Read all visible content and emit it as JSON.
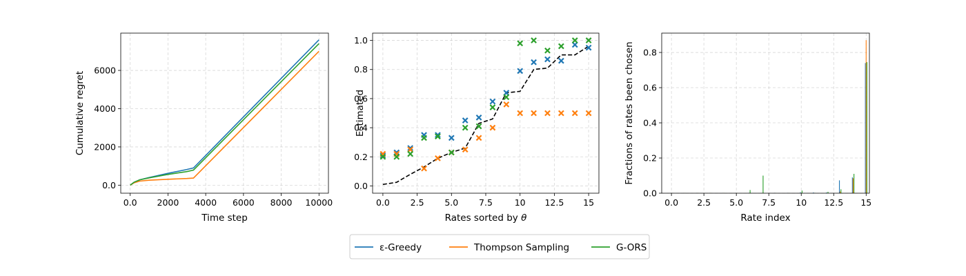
{
  "legend": {
    "items": [
      {
        "label": "ε-Greedy",
        "color": "#1f77b4"
      },
      {
        "label": "Thompson Sampling",
        "color": "#ff7f0e"
      },
      {
        "label": "G-ORS",
        "color": "#2ca02c"
      }
    ]
  },
  "chart_data": [
    {
      "type": "line",
      "xlabel": "Time step",
      "ylabel": "Cumulative regret",
      "xlim": [
        -500,
        10500
      ],
      "ylim": [
        -420,
        7950
      ],
      "xticks": [
        0,
        2000,
        4000,
        6000,
        8000,
        10000
      ],
      "yticks": [
        0,
        2000,
        4000,
        6000
      ],
      "grid": true,
      "series": [
        {
          "name": "ε-Greedy",
          "color": "#1f77b4",
          "x": [
            0,
            200,
            500,
            1000,
            2000,
            3000,
            3350,
            10000
          ],
          "y": [
            0,
            150,
            280,
            400,
            620,
            820,
            900,
            7600
          ]
        },
        {
          "name": "Thompson Sampling",
          "color": "#ff7f0e",
          "x": [
            0,
            200,
            500,
            1000,
            2000,
            3000,
            3350,
            10000
          ],
          "y": [
            0,
            120,
            210,
            260,
            310,
            350,
            370,
            7000
          ]
        },
        {
          "name": "G-ORS",
          "color": "#2ca02c",
          "x": [
            0,
            200,
            500,
            1000,
            2000,
            3000,
            3350,
            10000
          ],
          "y": [
            0,
            150,
            280,
            380,
            560,
            710,
            790,
            7400
          ]
        }
      ]
    },
    {
      "type": "scatter",
      "xlabel_prefix": "Rates sorted by ",
      "xlabel_symbol": "θ",
      "ylabel": "Estimated",
      "xlim": [
        -0.75,
        15.75
      ],
      "ylim": [
        -0.05,
        1.05
      ],
      "xticks": [
        0.0,
        2.5,
        5.0,
        7.5,
        10.0,
        12.5,
        15.0
      ],
      "yticks": [
        0.0,
        0.2,
        0.4,
        0.6,
        0.8,
        1.0
      ],
      "grid": true,
      "reference_line": {
        "style": "dashed",
        "color": "#000000",
        "x": [
          0,
          1,
          2,
          3,
          4,
          5,
          6,
          7,
          8,
          9,
          10,
          11,
          12,
          13,
          14,
          15
        ],
        "y": [
          0.01,
          0.025,
          0.08,
          0.13,
          0.19,
          0.23,
          0.26,
          0.43,
          0.46,
          0.64,
          0.65,
          0.8,
          0.81,
          0.9,
          0.9,
          0.96
        ]
      },
      "series": [
        {
          "name": "ε-Greedy",
          "color": "#1f77b4",
          "x": [
            0,
            1,
            2,
            3,
            4,
            5,
            6,
            7,
            8,
            9,
            10,
            11,
            12,
            13,
            14,
            15
          ],
          "y": [
            0.21,
            0.23,
            0.26,
            0.35,
            0.35,
            0.33,
            0.45,
            0.47,
            0.58,
            0.64,
            0.79,
            0.85,
            0.87,
            0.86,
            0.97,
            0.95
          ]
        },
        {
          "name": "Thompson Sampling",
          "color": "#ff7f0e",
          "x": [
            0,
            1,
            2,
            3,
            4,
            5,
            6,
            7,
            8,
            9,
            10,
            11,
            12,
            13,
            14,
            15
          ],
          "y": [
            0.22,
            0.22,
            0.25,
            0.12,
            0.19,
            0.23,
            0.25,
            0.33,
            0.4,
            0.56,
            0.5,
            0.5,
            0.5,
            0.5,
            0.5,
            0.5
          ]
        },
        {
          "name": "G-ORS",
          "color": "#2ca02c",
          "x": [
            0,
            1,
            2,
            3,
            4,
            5,
            6,
            7,
            8,
            9,
            10,
            11,
            12,
            13,
            14,
            15
          ],
          "y": [
            0.2,
            0.2,
            0.22,
            0.33,
            0.34,
            0.23,
            0.4,
            0.41,
            0.54,
            0.61,
            0.98,
            1.0,
            0.93,
            0.96,
            1.0,
            1.0
          ]
        }
      ]
    },
    {
      "type": "bar",
      "xlabel": "Rate index",
      "ylabel": "Fractions of rates been chosen",
      "xlim": [
        -0.75,
        15.25
      ],
      "ylim": [
        0,
        0.91
      ],
      "xticks": [
        0.0,
        2.5,
        5.0,
        7.5,
        10.0,
        12.5,
        15.0
      ],
      "yticks": [
        0.0,
        0.2,
        0.4,
        0.6,
        0.8
      ],
      "grid": true,
      "categories": [
        0,
        1,
        2,
        3,
        4,
        5,
        6,
        7,
        8,
        9,
        10,
        11,
        12,
        13,
        14,
        15
      ],
      "series": [
        {
          "name": "ε-Greedy",
          "color": "#1f77b4",
          "values": [
            0.001,
            0.001,
            0.001,
            0.001,
            0.001,
            0.001,
            0.002,
            0.002,
            0.002,
            0.002,
            0.005,
            0.004,
            0.004,
            0.073,
            0.09,
            0.74
          ]
        },
        {
          "name": "Thompson Sampling",
          "color": "#ff7f0e",
          "values": [
            0.001,
            0.001,
            0.001,
            0.001,
            0.001,
            0.001,
            0.001,
            0.001,
            0.001,
            0.001,
            0.001,
            0.001,
            0.001,
            0.01,
            0.085,
            0.87
          ]
        },
        {
          "name": "G-ORS",
          "color": "#2ca02c",
          "values": [
            0.001,
            0.001,
            0.001,
            0.001,
            0.001,
            0.001,
            0.018,
            0.1,
            0.001,
            0.001,
            0.015,
            0.002,
            0.008,
            0.022,
            0.11,
            0.745
          ]
        }
      ]
    }
  ]
}
